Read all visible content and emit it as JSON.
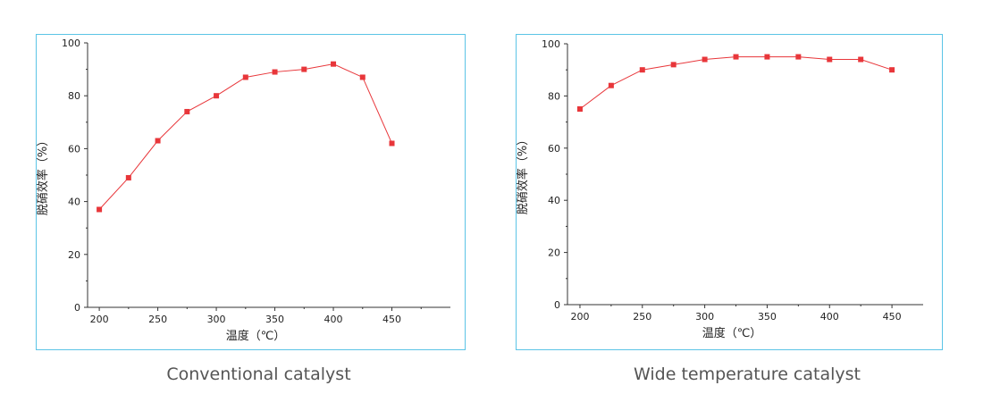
{
  "colors": {
    "border": "#5bc4e6",
    "series": "#e8363a",
    "axis": "#333333",
    "caption": "#555555"
  },
  "captions": {
    "left": "Conventional catalyst",
    "right": "Wide temperature catalyst"
  },
  "chart_data": [
    {
      "type": "line",
      "title": "",
      "xlabel": "温度（℃）",
      "ylabel": "脱硝效率（%）",
      "xlim": [
        190,
        500
      ],
      "ylim": [
        0,
        100
      ],
      "xticks": [
        200,
        250,
        300,
        350,
        400,
        450
      ],
      "yticks": [
        0,
        20,
        40,
        60,
        80,
        100
      ],
      "grid": false,
      "series": [
        {
          "x": [
            200,
            225,
            250,
            275,
            300,
            325,
            350,
            375,
            400,
            425,
            450
          ],
          "values": [
            37,
            49,
            63,
            74,
            80,
            87,
            89,
            90,
            92,
            87,
            62
          ]
        }
      ]
    },
    {
      "type": "line",
      "title": "",
      "xlabel": "温度（℃）",
      "ylabel": "脱硝效率（%）",
      "xlim": [
        190,
        475
      ],
      "ylim": [
        0,
        100
      ],
      "xticks": [
        200,
        250,
        300,
        350,
        400,
        450
      ],
      "yticks": [
        0,
        20,
        40,
        60,
        80,
        100
      ],
      "grid": false,
      "series": [
        {
          "x": [
            200,
            225,
            250,
            275,
            300,
            325,
            350,
            375,
            400,
            425,
            450
          ],
          "values": [
            75,
            84,
            90,
            92,
            94,
            95,
            95,
            95,
            94,
            94,
            90
          ]
        }
      ]
    }
  ]
}
